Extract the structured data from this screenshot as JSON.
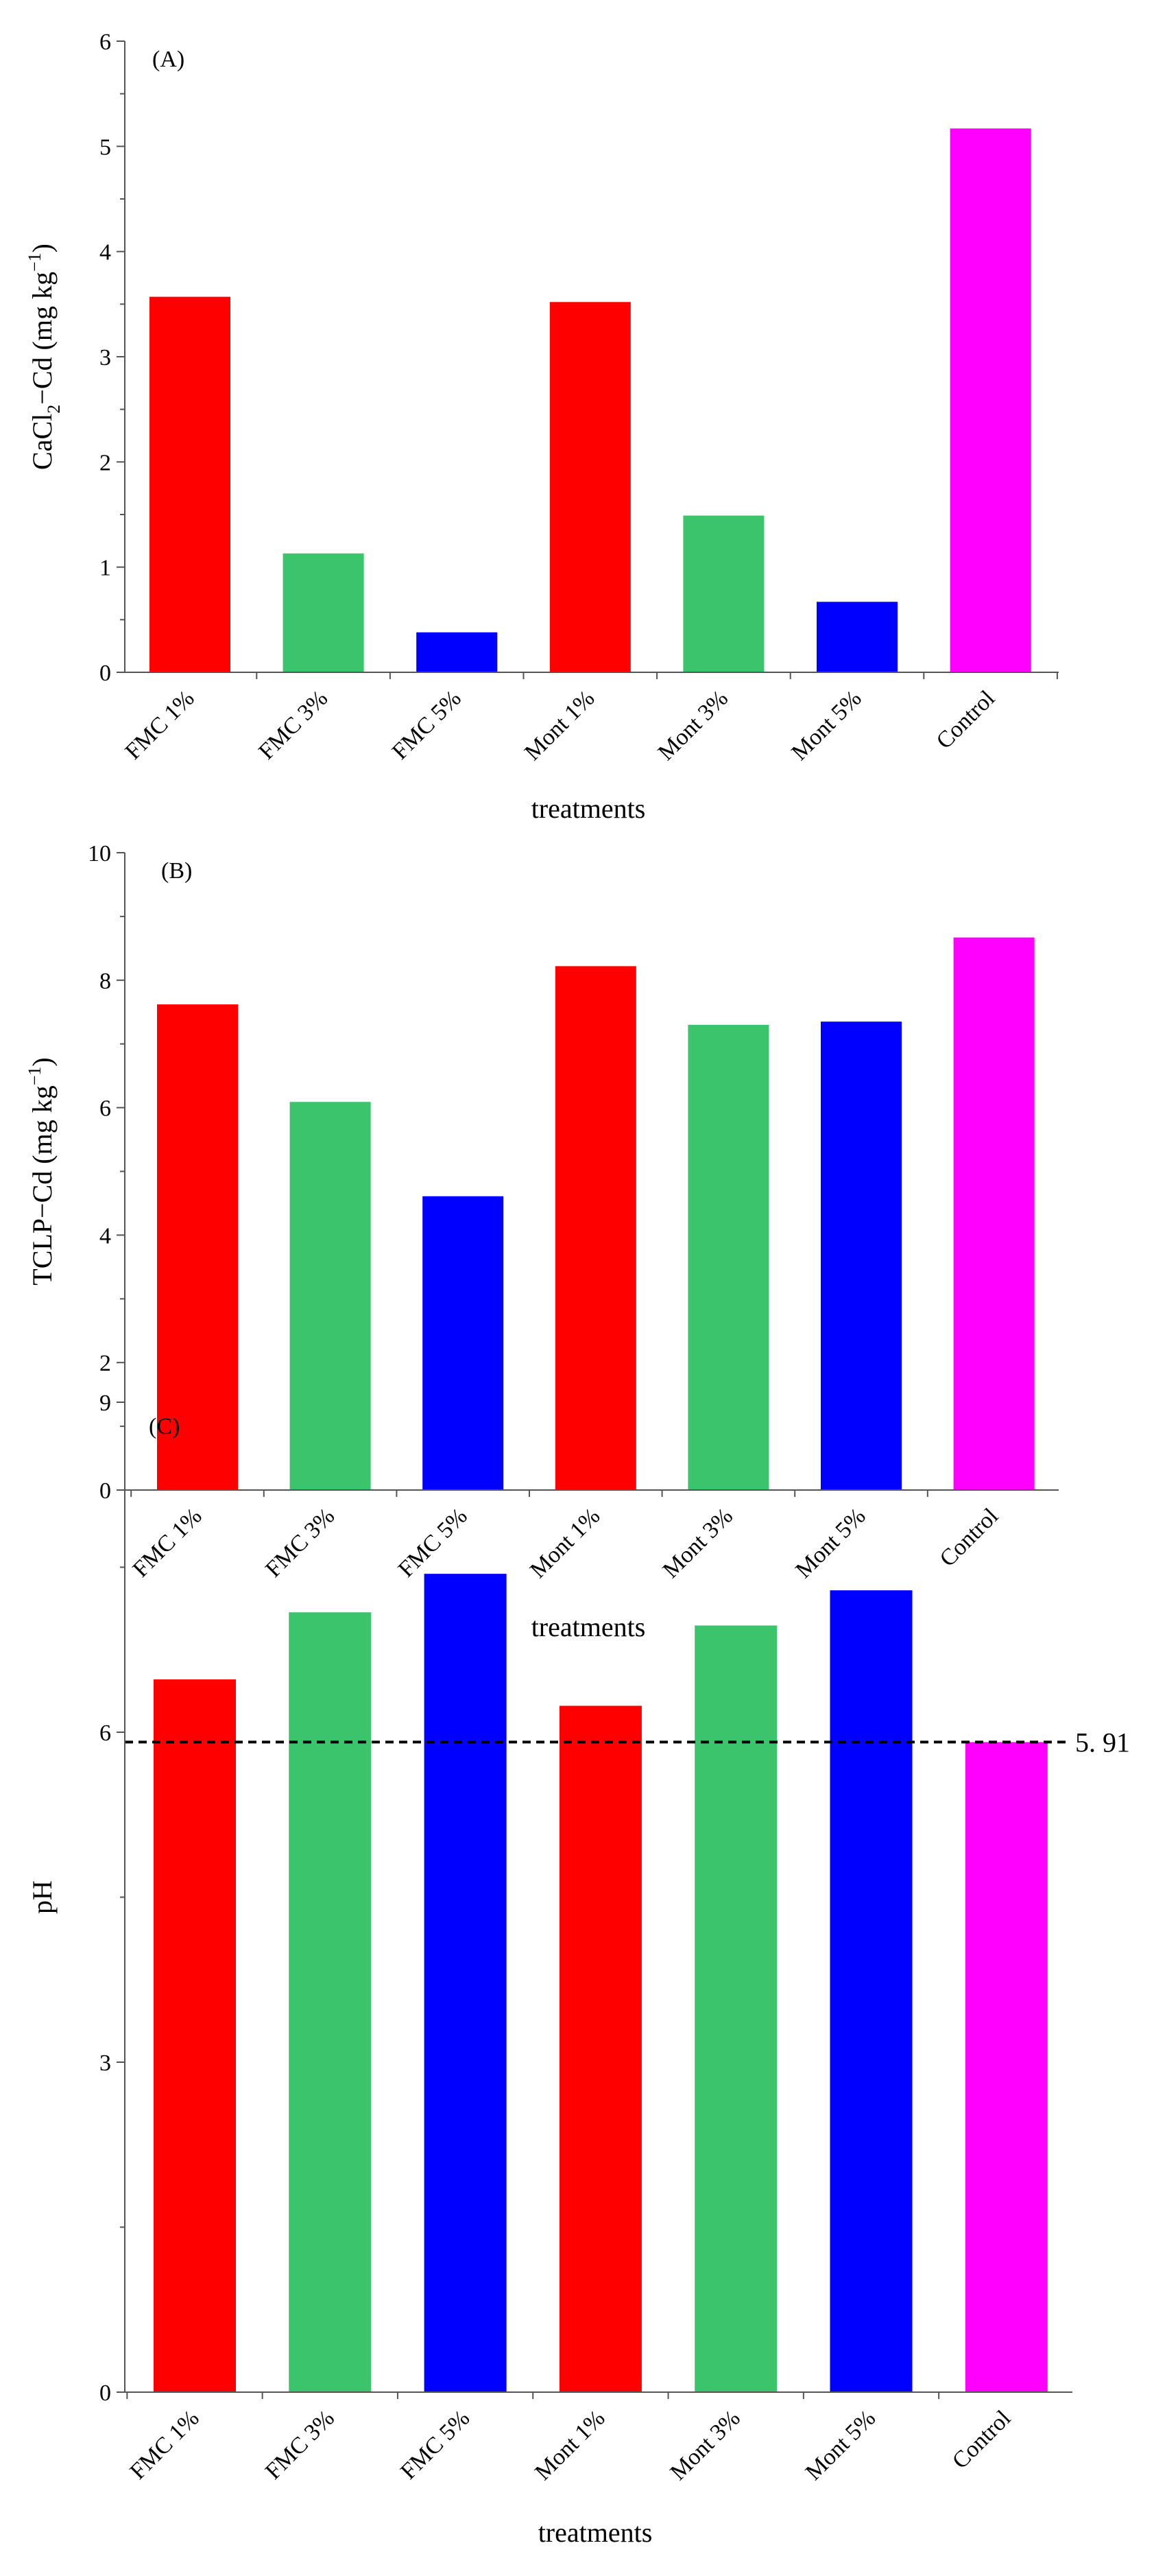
{
  "chart_data": [
    {
      "type": "bar",
      "panel_label": "(A)",
      "categories": [
        "FMC 1%",
        "FMC 3%",
        "FMC 5%",
        "Mont 1%",
        "Mont 3%",
        "Mont 5%",
        "Control"
      ],
      "values": [
        3.57,
        1.13,
        0.38,
        3.52,
        1.49,
        0.67,
        5.17
      ],
      "bar_colors": [
        "#ff0000",
        "#3cc46c",
        "#0000ff",
        "#ff0000",
        "#3cc46c",
        "#0000ff",
        "#ff00ff"
      ],
      "xlabel": "treatments",
      "ylabel": {
        "base": "CaCl",
        "sub": "2",
        "rest": "−Cd (mg kg",
        "sup": "−1",
        "end": ")"
      },
      "ylim": [
        0,
        6
      ],
      "yticks": [
        0,
        1,
        2,
        3,
        4,
        5,
        6
      ]
    },
    {
      "type": "bar",
      "panel_label": "(B)",
      "categories": [
        "FMC 1%",
        "FMC 3%",
        "FMC 5%",
        "Mont 1%",
        "Mont 3%",
        "Mont 5%",
        "Control"
      ],
      "values": [
        7.62,
        6.09,
        4.61,
        8.22,
        7.3,
        7.35,
        8.67
      ],
      "bar_colors": [
        "#ff0000",
        "#3cc46c",
        "#0000ff",
        "#ff0000",
        "#3cc46c",
        "#0000ff",
        "#ff00ff"
      ],
      "xlabel": "treatments",
      "ylabel": {
        "base": "TCLP−Cd (mg kg",
        "sup": "−1",
        "end": ")"
      },
      "ylim": [
        0,
        10
      ],
      "yticks": [
        0,
        2,
        4,
        6,
        8,
        10
      ]
    },
    {
      "type": "bar",
      "panel_label": "(C)",
      "categories": [
        "FMC 1%",
        "FMC 3%",
        "FMC 5%",
        "Mont 1%",
        "Mont 3%",
        "Mont 5%",
        "Control"
      ],
      "values": [
        6.48,
        7.09,
        7.44,
        6.24,
        6.97,
        7.29,
        5.91
      ],
      "bar_colors": [
        "#ff0000",
        "#3cc46c",
        "#0000ff",
        "#ff0000",
        "#3cc46c",
        "#0000ff",
        "#ff00ff"
      ],
      "xlabel": "treatments",
      "ylabel": {
        "base": "pH"
      },
      "ylim": [
        0,
        9
      ],
      "yticks": [
        0,
        3,
        6,
        9
      ],
      "reference_line": {
        "value": 5.91,
        "label": "5. 91",
        "style": "dashed"
      }
    }
  ]
}
